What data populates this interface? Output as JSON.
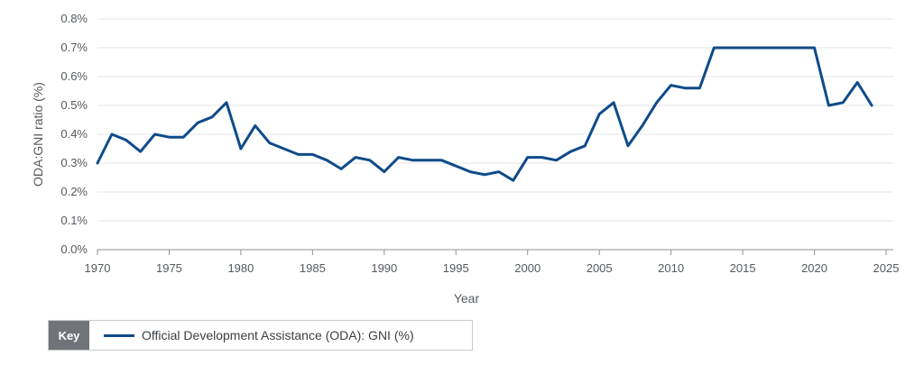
{
  "chart_data": {
    "type": "line",
    "title": "",
    "xlabel": "Year",
    "ylabel": "ODA:GNI ratio (%)",
    "xlim": [
      1970,
      2025
    ],
    "ylim": [
      0,
      0.8
    ],
    "x_ticks": [
      1970,
      1975,
      1980,
      1985,
      1990,
      1995,
      2000,
      2005,
      2010,
      2015,
      2020,
      2025
    ],
    "x_tick_labels": [
      "1970",
      "1975",
      "1980",
      "1985",
      "1990",
      "1995",
      "2000",
      "2005",
      "2010",
      "2015",
      "2020",
      "2025"
    ],
    "y_ticks": [
      0,
      0.1,
      0.2,
      0.3,
      0.4,
      0.5,
      0.6,
      0.7,
      0.8
    ],
    "y_tick_labels": [
      "0.0%",
      "0.1%",
      "0.2%",
      "0.3%",
      "0.4%",
      "0.5%",
      "0.6%",
      "0.7%",
      "0.8%"
    ],
    "grid": true,
    "legend_position": "bottom-left",
    "series": [
      {
        "name": "Official Development Assistance (ODA): GNI (%)",
        "color": "#0f4b8a",
        "x": [
          1970,
          1971,
          1972,
          1973,
          1974,
          1975,
          1976,
          1977,
          1978,
          1979,
          1980,
          1981,
          1982,
          1983,
          1984,
          1985,
          1986,
          1987,
          1988,
          1989,
          1990,
          1991,
          1992,
          1993,
          1994,
          1995,
          1996,
          1997,
          1998,
          1999,
          2000,
          2001,
          2002,
          2003,
          2004,
          2005,
          2006,
          2007,
          2008,
          2009,
          2010,
          2011,
          2012,
          2013,
          2014,
          2015,
          2016,
          2017,
          2018,
          2019,
          2020,
          2021,
          2022,
          2023,
          2024
        ],
        "values": [
          0.3,
          0.4,
          0.38,
          0.34,
          0.4,
          0.39,
          0.39,
          0.44,
          0.46,
          0.51,
          0.35,
          0.43,
          0.37,
          0.35,
          0.33,
          0.33,
          0.31,
          0.28,
          0.32,
          0.31,
          0.27,
          0.32,
          0.31,
          0.31,
          0.31,
          0.29,
          0.27,
          0.26,
          0.27,
          0.24,
          0.32,
          0.32,
          0.31,
          0.34,
          0.36,
          0.47,
          0.51,
          0.36,
          0.43,
          0.51,
          0.57,
          0.56,
          0.56,
          0.7,
          0.7,
          0.7,
          0.7,
          0.7,
          0.7,
          0.7,
          0.7,
          0.5,
          0.51,
          0.58,
          0.5
        ]
      }
    ]
  },
  "legend": {
    "key_label": "Key",
    "items": [
      {
        "label": "Official Development Assistance (ODA): GNI (%)",
        "color": "#0f4b8a"
      }
    ]
  },
  "colors": {
    "grid": "#e3e5e8",
    "axis": "#8c9196",
    "text": "#555a5f"
  }
}
